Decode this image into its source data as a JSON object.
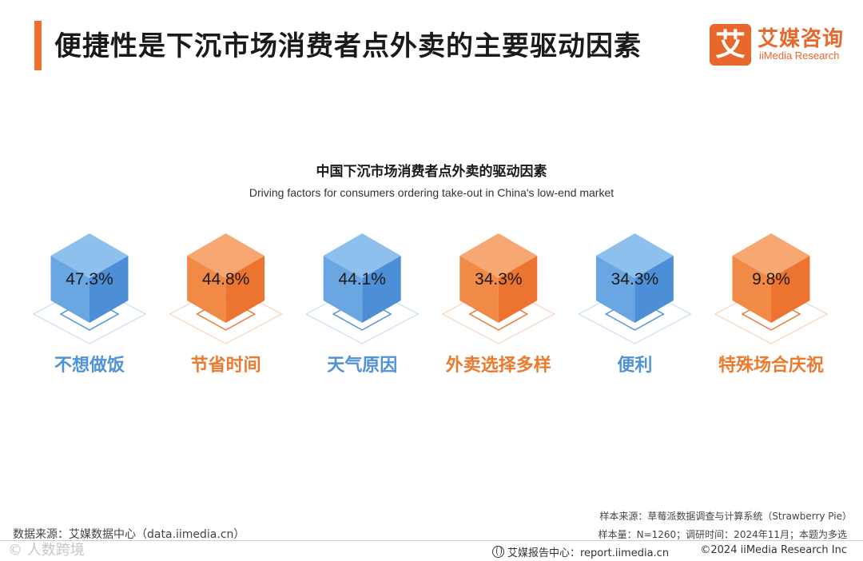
{
  "header": {
    "title": "便捷性是下沉市场消费者点外卖的主要驱动因素",
    "logo_mark": "艾",
    "logo_cn": "艾媒咨询",
    "logo_en": "iiMedia Research"
  },
  "colors": {
    "blue": "#5b9bd5",
    "orange": "#ef7d31",
    "accent": "#ef6f2e"
  },
  "chart_data": {
    "type": "bar",
    "title": "中国下沉市场消费者点外卖的驱动因素",
    "subtitle": "Driving factors for consumers ordering take-out in China's low-end market",
    "categories": [
      "不想做饭",
      "节省时间",
      "天气原因",
      "外卖选择多样",
      "便利",
      "特殊场合庆祝"
    ],
    "values": [
      47.3,
      44.8,
      44.1,
      34.3,
      34.3,
      9.8
    ],
    "value_labels": [
      "47.3%",
      "44.8%",
      "44.1%",
      "34.3%",
      "34.3%",
      "9.8%"
    ],
    "unit": "%",
    "colors": [
      "blue",
      "orange",
      "blue",
      "orange",
      "blue",
      "orange"
    ]
  },
  "footer": {
    "sample_source": "样本来源：草莓派数据调查与计算系统（Strawberry Pie）",
    "sample_size": "样本量：N=1260；调研时间：2024年11月；本题为多选",
    "data_source": "数据来源：艾媒数据中心（data.iimedia.cn）",
    "report_center": "艾媒报告中心：report.iimedia.cn",
    "copyright": "©2024  iiMedia Research  Inc",
    "watermark": "© 人数跨境"
  }
}
